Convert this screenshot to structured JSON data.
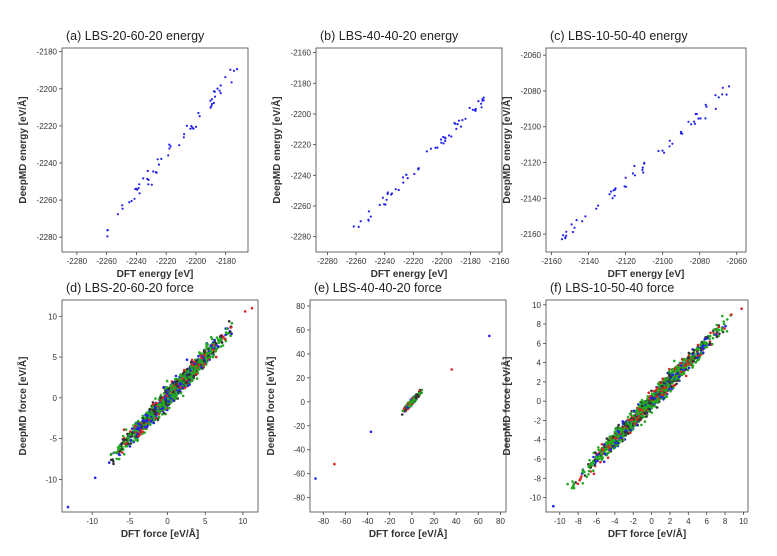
{
  "figure": {
    "colors": {
      "energy": "#2222ee",
      "force_r": "#dd2222",
      "force_g": "#22aa22",
      "force_b": "#2222ee",
      "force_k": "#333333",
      "frame": "#444444"
    }
  },
  "chart_data": [
    {
      "id": "a",
      "type": "scatter",
      "title": "(a) LBS-20-60-20 energy",
      "xlabel": "DFT energy [eV]",
      "ylabel": "DeepMD energy [eV/Å]",
      "xlim": [
        -2290,
        -2165
      ],
      "ylim": [
        -2288,
        -2178
      ],
      "xticks": [
        -2280,
        -2260,
        -2240,
        -2220,
        -2200,
        -2180
      ],
      "yticks": [
        -2280,
        -2260,
        -2240,
        -2220,
        -2200,
        -2180
      ],
      "series": [
        {
          "name": "energy",
          "line_from": [
            -2260,
            -2276
          ],
          "line_to": [
            -2172,
            -2188
          ],
          "n": 60,
          "noise": 2.5
        }
      ]
    },
    {
      "id": "b",
      "type": "scatter",
      "title": "(b) LBS-40-40-20 energy",
      "xlabel": "DFT energy [eV]",
      "ylabel": "DeepMD energy [eV/Å]",
      "xlim": [
        -2288,
        -2158
      ],
      "ylim": [
        -2290,
        -2157
      ],
      "xticks": [
        -2280,
        -2260,
        -2240,
        -2220,
        -2200,
        -2180,
        -2160
      ],
      "yticks": [
        -2280,
        -2260,
        -2240,
        -2220,
        -2200,
        -2180,
        -2160
      ],
      "series": [
        {
          "name": "energy",
          "line_from": [
            -2262,
            -2278
          ],
          "line_to": [
            -2170,
            -2189
          ],
          "n": 60,
          "noise": 2
        }
      ]
    },
    {
      "id": "c",
      "type": "scatter",
      "title": "(c) LBS-10-50-40 energy",
      "xlabel": "DFT energy [eV]",
      "ylabel": "DeepMD energy [eV/Å]",
      "xlim": [
        -2163,
        -2055
      ],
      "ylim": [
        -2170,
        -2056
      ],
      "xticks": [
        -2160,
        -2140,
        -2120,
        -2100,
        -2080,
        -2060
      ],
      "yticks": [
        -2160,
        -2140,
        -2120,
        -2100,
        -2080,
        -2060
      ],
      "series": [
        {
          "name": "energy",
          "line_from": [
            -2155,
            -2163
          ],
          "line_to": [
            -2062,
            -2077
          ],
          "n": 60,
          "noise": 2
        }
      ]
    },
    {
      "id": "d",
      "type": "scatter",
      "title": "(d) LBS-20-60-20 force",
      "xlabel": "DFT force [eV/Å]",
      "ylabel": "DeepMD force [eV/Å]",
      "xlim": [
        -14,
        12
      ],
      "ylim": [
        -14,
        12
      ],
      "xticks": [
        -10,
        -5,
        0,
        5,
        10
      ],
      "yticks": [
        -10,
        -5,
        0,
        5,
        10
      ],
      "series": [
        {
          "name": "force",
          "range": [
            -9,
            10
          ],
          "n": 1600,
          "noise": 0.55
        }
      ],
      "outliers": [
        [
          -13.2,
          -13.4
        ],
        [
          11.2,
          11.0
        ],
        [
          -9.6,
          -9.8
        ],
        [
          10.3,
          10.6
        ]
      ]
    },
    {
      "id": "e",
      "type": "scatter",
      "title": "(e) LBS-40-40-20 force",
      "xlabel": "DFT force [eV/Å]",
      "ylabel": "DeepMD force [eV/Å]",
      "xlim": [
        -92,
        85
      ],
      "ylim": [
        -92,
        85
      ],
      "xticks": [
        -80,
        -60,
        -40,
        -20,
        0,
        20,
        40,
        60,
        80
      ],
      "yticks": [
        -80,
        -60,
        -40,
        -20,
        0,
        20,
        40,
        60,
        80
      ],
      "series": [
        {
          "name": "force",
          "range": [
            -10,
            10
          ],
          "n": 600,
          "noise": 0.9
        }
      ],
      "outliers": [
        [
          -87,
          -64
        ],
        [
          -70,
          -52
        ],
        [
          -37,
          -25
        ],
        [
          36,
          27
        ],
        [
          70,
          55
        ]
      ]
    },
    {
      "id": "f",
      "type": "scatter",
      "title": "(f) LBS-10-50-40 force",
      "xlabel": "DFT force [eV/Å]",
      "ylabel": "DeepMD force [eV/Å]",
      "xlim": [
        -11.5,
        10.5
      ],
      "ylim": [
        -11.5,
        10.5
      ],
      "xticks": [
        -10,
        -8,
        -6,
        -4,
        -2,
        0,
        2,
        4,
        6,
        8,
        10
      ],
      "yticks": [
        -10,
        -8,
        -6,
        -4,
        -2,
        0,
        2,
        4,
        6,
        8,
        10
      ],
      "series": [
        {
          "name": "force",
          "range": [
            -10,
            10
          ],
          "n": 1600,
          "noise": 0.45
        }
      ],
      "outliers": [
        [
          -10.7,
          -10.9
        ],
        [
          9.8,
          9.6
        ]
      ]
    }
  ]
}
